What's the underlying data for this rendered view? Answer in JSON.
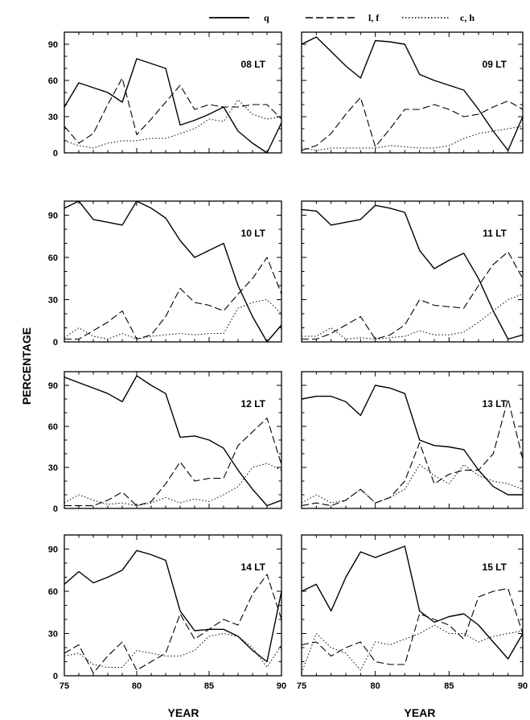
{
  "chart_data": {
    "type": "line",
    "ylabel": "PERCENTAGE",
    "xlabel": "YEAR",
    "xlim": [
      75,
      90
    ],
    "ylim": [
      0,
      100
    ],
    "xticks": [
      75,
      80,
      85,
      90
    ],
    "yticks": [
      0,
      30,
      60,
      90
    ],
    "legend": {
      "placement": "top",
      "entries": [
        {
          "name": "q",
          "style": "solid"
        },
        {
          "name": "l, f",
          "style": "dashed"
        },
        {
          "name": "c, h",
          "style": "dotted"
        }
      ]
    },
    "x": [
      75,
      76,
      77,
      78,
      79,
      80,
      81,
      82,
      83,
      84,
      85,
      86,
      87,
      88,
      89,
      90
    ],
    "panels": [
      {
        "title": "08 LT",
        "series": [
          {
            "name": "q",
            "values": [
              38,
              58,
              54,
              50,
              42,
              78,
              74,
              70,
              23,
              27,
              32,
              38,
              18,
              8,
              0,
              25
            ]
          },
          {
            "name": "l, f",
            "values": [
              22,
              8,
              16,
              40,
              62,
              15,
              28,
              42,
              56,
              36,
              40,
              38,
              38,
              40,
              40,
              28
            ]
          },
          {
            "name": "c, h",
            "values": [
              10,
              6,
              4,
              8,
              10,
              10,
              12,
              12,
              16,
              20,
              28,
              26,
              44,
              32,
              28,
              30
            ]
          }
        ]
      },
      {
        "title": "09 LT",
        "series": [
          {
            "name": "q",
            "values": [
              90,
              96,
              84,
              72,
              62,
              93,
              92,
              90,
              65,
              60,
              56,
              52,
              36,
              18,
              2,
              30
            ]
          },
          {
            "name": "l, f",
            "values": [
              2,
              6,
              16,
              32,
              46,
              5,
              20,
              36,
              36,
              40,
              36,
              30,
              32,
              38,
              43,
              36
            ]
          },
          {
            "name": "c, h",
            "values": [
              4,
              2,
              4,
              4,
              4,
              4,
              6,
              5,
              4,
              4,
              6,
              12,
              16,
              18,
              20,
              22
            ]
          }
        ]
      },
      {
        "title": "10 LT",
        "series": [
          {
            "name": "q",
            "values": [
              95,
              100,
              87,
              85,
              83,
              100,
              95,
              88,
              72,
              60,
              65,
              70,
              40,
              18,
              0,
              12
            ]
          },
          {
            "name": "l, f",
            "values": [
              2,
              2,
              8,
              14,
              22,
              2,
              5,
              18,
              38,
              28,
              26,
              22,
              34,
              45,
              60,
              34
            ]
          },
          {
            "name": "c, h",
            "values": [
              3,
              10,
              4,
              2,
              6,
              2,
              4,
              5,
              6,
              5,
              6,
              6,
              24,
              28,
              30,
              20
            ]
          }
        ]
      },
      {
        "title": "11 LT",
        "series": [
          {
            "name": "q",
            "values": [
              94,
              93,
              83,
              85,
              87,
              97,
              95,
              92,
              65,
              52,
              58,
              63,
              45,
              22,
              2,
              5
            ]
          },
          {
            "name": "l, f",
            "values": [
              2,
              2,
              6,
              12,
              18,
              2,
              5,
              12,
              30,
              26,
              25,
              24,
              40,
              55,
              64,
              45
            ]
          },
          {
            "name": "c, h",
            "values": [
              4,
              4,
              10,
              2,
              3,
              2,
              3,
              4,
              8,
              5,
              5,
              7,
              14,
              22,
              30,
              34
            ]
          }
        ]
      },
      {
        "title": "12 LT",
        "series": [
          {
            "name": "q",
            "values": [
              96,
              92,
              88,
              84,
              78,
              97,
              90,
              84,
              52,
              53,
              50,
              44,
              28,
              14,
              2,
              6
            ]
          },
          {
            "name": "l, f",
            "values": [
              2,
              2,
              2,
              6,
              12,
              2,
              5,
              18,
              34,
              20,
              22,
              22,
              46,
              56,
              66,
              32
            ]
          },
          {
            "name": "c, h",
            "values": [
              4,
              10,
              6,
              3,
              4,
              2,
              4,
              8,
              4,
              7,
              5,
              10,
              16,
              30,
              33,
              28
            ]
          }
        ]
      },
      {
        "title": "13 LT",
        "series": [
          {
            "name": "q",
            "values": [
              80,
              82,
              82,
              78,
              68,
              90,
              88,
              84,
              50,
              46,
              45,
              43,
              28,
              16,
              10,
              10
            ]
          },
          {
            "name": "l, f",
            "values": [
              2,
              4,
              2,
              6,
              14,
              4,
              8,
              20,
              48,
              18,
              25,
              28,
              28,
              40,
              80,
              36
            ]
          },
          {
            "name": "c, h",
            "values": [
              4,
              10,
              4,
              6,
              14,
              4,
              8,
              14,
              32,
              24,
              18,
              32,
              24,
              20,
              18,
              14
            ]
          }
        ]
      },
      {
        "title": "14 LT",
        "series": [
          {
            "name": "q",
            "values": [
              65,
              74,
              66,
              70,
              75,
              89,
              86,
              82,
              46,
              32,
              33,
              33,
              28,
              18,
              10,
              60
            ]
          },
          {
            "name": "l, f",
            "values": [
              16,
              22,
              2,
              14,
              24,
              4,
              10,
              16,
              44,
              26,
              33,
              40,
              36,
              58,
              72,
              40
            ]
          },
          {
            "name": "c, h",
            "values": [
              14,
              16,
              8,
              6,
              6,
              18,
              16,
              14,
              14,
              18,
              28,
              30,
              28,
              20,
              6,
              22
            ]
          }
        ]
      },
      {
        "title": "15 LT",
        "series": [
          {
            "name": "q",
            "values": [
              60,
              65,
              46,
              70,
              88,
              84,
              88,
              92,
              46,
              38,
              42,
              44,
              36,
              24,
              12,
              30
            ]
          },
          {
            "name": "l, f",
            "values": [
              22,
              24,
              14,
              20,
              24,
              10,
              8,
              8,
              44,
              40,
              36,
              26,
              56,
              60,
              62,
              30
            ]
          },
          {
            "name": "c, h",
            "values": [
              2,
              30,
              20,
              16,
              4,
              24,
              22,
              26,
              30,
              36,
              30,
              30,
              24,
              28,
              30,
              32
            ]
          }
        ]
      }
    ]
  }
}
